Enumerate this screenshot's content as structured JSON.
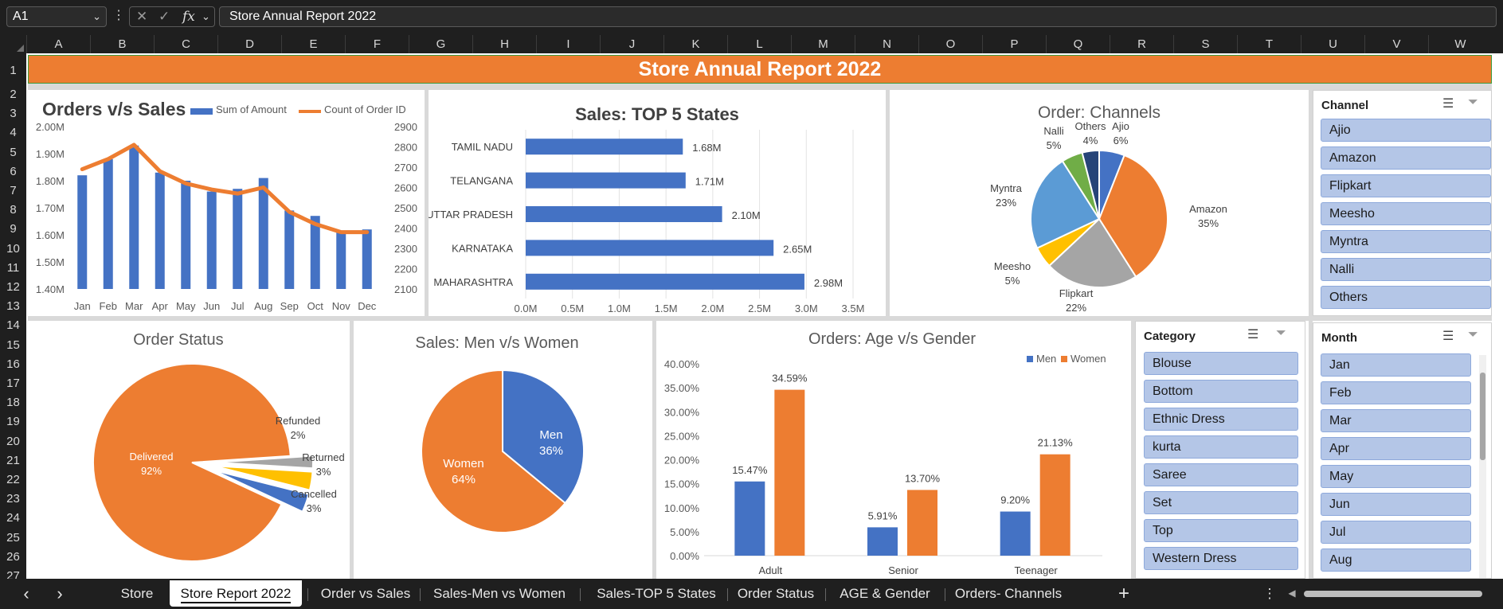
{
  "formula_bar": {
    "cell_ref": "A1",
    "formula": "Store Annual Report 2022"
  },
  "columns": [
    "A",
    "B",
    "C",
    "D",
    "E",
    "F",
    "G",
    "H",
    "I",
    "J",
    "K",
    "L",
    "M",
    "N",
    "O",
    "P",
    "Q",
    "R",
    "S",
    "T",
    "U",
    "V",
    "W"
  ],
  "rows": [
    "1",
    "2",
    "3",
    "4",
    "5",
    "6",
    "7",
    "8",
    "9",
    "10",
    "11",
    "12",
    "13",
    "14",
    "15",
    "16",
    "17",
    "18",
    "19",
    "20",
    "21",
    "22",
    "23",
    "24",
    "25",
    "26",
    "27"
  ],
  "report_title": "Store Annual Report 2022",
  "chart_data": [
    {
      "type": "bar-line",
      "title": "Orders v/s Sales",
      "categories": [
        "Jan",
        "Feb",
        "Mar",
        "Apr",
        "May",
        "Jun",
        "Jul",
        "Aug",
        "Sep",
        "Oct",
        "Nov",
        "Dec"
      ],
      "series": [
        {
          "name": "Sum of Amount",
          "type": "bar",
          "axis": "left",
          "color": "#4472c4",
          "values": [
            1.82,
            1.88,
            1.93,
            1.83,
            1.8,
            1.76,
            1.77,
            1.81,
            1.69,
            1.67,
            1.61,
            1.62
          ]
        },
        {
          "name": "Count of Order ID",
          "type": "line",
          "axis": "right",
          "color": "#ed7d31",
          "values": [
            2690,
            2740,
            2810,
            2680,
            2620,
            2590,
            2570,
            2600,
            2480,
            2420,
            2380,
            2380
          ]
        }
      ],
      "y_left_ticks": [
        "2.00M",
        "1.90M",
        "1.80M",
        "1.70M",
        "1.60M",
        "1.50M",
        "1.40M"
      ],
      "y_left_range": [
        1.4,
        2.0
      ],
      "y_right_ticks": [
        "2900",
        "2800",
        "2700",
        "2600",
        "2500",
        "2400",
        "2300",
        "2200",
        "2100"
      ],
      "y_right_range": [
        2100,
        2900
      ],
      "legend": "top"
    },
    {
      "type": "bar",
      "orientation": "horizontal",
      "title": "Sales: TOP 5 States",
      "categories": [
        "TAMIL NADU",
        "TELANGANA",
        "UTTAR PRADESH",
        "KARNATAKA",
        "MAHARASHTRA"
      ],
      "values": [
        1.68,
        1.71,
        2.1,
        2.65,
        2.98
      ],
      "data_labels": [
        "1.68M",
        "1.71M",
        "2.10M",
        "2.65M",
        "2.98M"
      ],
      "x_ticks": [
        "0.0M",
        "0.5M",
        "1.0M",
        "1.5M",
        "2.0M",
        "2.5M",
        "3.0M",
        "3.5M"
      ],
      "x_range": [
        0,
        3.5
      ],
      "grid": true
    },
    {
      "type": "pie",
      "title": "Order: Channels",
      "slices": [
        {
          "label": "Ajio",
          "pct_label": "6%",
          "value": 6,
          "color": "#4472c4"
        },
        {
          "label": "Amazon",
          "pct_label": "35%",
          "value": 35,
          "color": "#ed7d31"
        },
        {
          "label": "Flipkart",
          "pct_label": "22%",
          "value": 22,
          "color": "#a5a5a5"
        },
        {
          "label": "Meesho",
          "pct_label": "5%",
          "value": 5,
          "color": "#ffc000"
        },
        {
          "label": "Myntra",
          "pct_label": "23%",
          "value": 23,
          "color": "#5b9bd5"
        },
        {
          "label": "Nalli",
          "pct_label": "5%",
          "value": 5,
          "color": "#70ad47"
        },
        {
          "label": "Others",
          "pct_label": "4%",
          "value": 4,
          "color": "#264478"
        }
      ]
    },
    {
      "type": "pie",
      "title": "Order Status",
      "slices": [
        {
          "label": "Delivered",
          "pct_label": "92%",
          "value": 92,
          "color": "#ed7d31"
        },
        {
          "label": "Refunded",
          "pct_label": "2%",
          "value": 2,
          "color": "#a5a5a5"
        },
        {
          "label": "Returned",
          "pct_label": "3%",
          "value": 3,
          "color": "#ffc000"
        },
        {
          "label": "Cancelled",
          "pct_label": "3%",
          "value": 3,
          "color": "#4472c4"
        }
      ]
    },
    {
      "type": "pie",
      "title": "Sales: Men v/s Women",
      "slices": [
        {
          "label": "Men",
          "pct_label": "36%",
          "value": 36,
          "color": "#4472c4"
        },
        {
          "label": "Women",
          "pct_label": "64%",
          "value": 64,
          "color": "#ed7d31"
        }
      ]
    },
    {
      "type": "bar",
      "title": "Orders: Age v/s Gender",
      "categories": [
        "Adult",
        "Senior",
        "Teenager"
      ],
      "series": [
        {
          "name": "Men",
          "color": "#4472c4",
          "values": [
            15.47,
            5.91,
            9.2
          ],
          "labels": [
            "15.47%",
            "5.91%",
            "9.20%"
          ]
        },
        {
          "name": "Women",
          "color": "#ed7d31",
          "values": [
            34.59,
            13.7,
            21.13
          ],
          "labels": [
            "34.59%",
            "13.70%",
            "21.13%"
          ]
        }
      ],
      "y_ticks": [
        "40.00%",
        "35.00%",
        "30.00%",
        "25.00%",
        "20.00%",
        "15.00%",
        "10.00%",
        "5.00%",
        "0.00%"
      ],
      "y_range": [
        0,
        40
      ],
      "legend": "top-right"
    }
  ],
  "slicers": {
    "channel": {
      "title": "Channel",
      "items": [
        "Ajio",
        "Amazon",
        "Flipkart",
        "Meesho",
        "Myntra",
        "Nalli",
        "Others"
      ]
    },
    "category": {
      "title": "Category",
      "items": [
        "Blouse",
        "Bottom",
        "Ethnic Dress",
        "kurta",
        "Saree",
        "Set",
        "Top",
        "Western Dress"
      ]
    },
    "month": {
      "title": "Month",
      "items": [
        "Jan",
        "Feb",
        "Mar",
        "Apr",
        "May",
        "Jun",
        "Jul",
        "Aug"
      ]
    }
  },
  "icons": {
    "multi_select": "multi-select-icon",
    "clear_filter": "clear-filter-icon"
  },
  "sheet_tabs": [
    "Store",
    "Store Report 2022",
    "Order vs Sales",
    "Sales-Men vs Women",
    "Sales-TOP 5 States",
    "Order Status",
    "AGE & Gender",
    "Orders- Channels"
  ],
  "active_tab": "Store Report 2022",
  "nav": {
    "prev": "‹",
    "next": "›",
    "add": "+",
    "more": "⋮",
    "fx": "fx"
  }
}
